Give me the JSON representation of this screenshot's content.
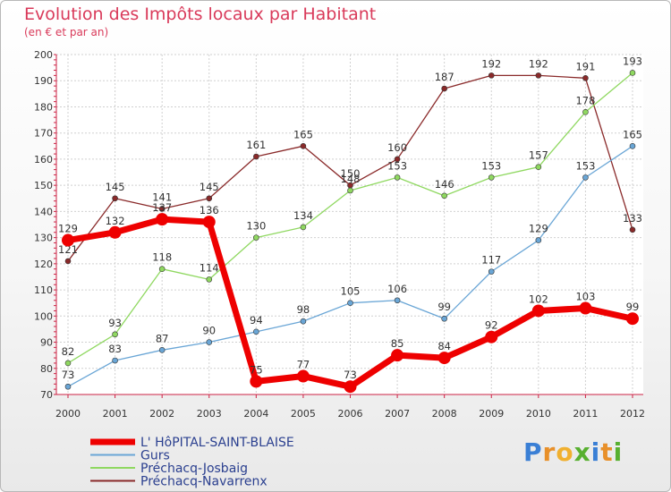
{
  "title": "Evolution des Impôts locaux par Habitant",
  "subtitle": "(en € et par an)",
  "logo": {
    "text": "Proxiti",
    "letters": [
      "P",
      "r",
      "o",
      "x",
      "i",
      "t",
      "i"
    ],
    "colors": [
      "#3a7fd5",
      "#e8902a",
      "#f0b030",
      "#58b030",
      "#3a7fd5",
      "#e8902a",
      "#58b030"
    ]
  },
  "chart_data": {
    "type": "line",
    "title": "Evolution des Impôts locaux par Habitant",
    "subtitle": "(en € et par an)",
    "x": [
      "2000",
      "2001",
      "2002",
      "2003",
      "2004",
      "2005",
      "2006",
      "2007",
      "2008",
      "2009",
      "2010",
      "2011",
      "2012"
    ],
    "ylim": [
      70,
      200
    ],
    "yticks": [
      70,
      80,
      90,
      100,
      110,
      120,
      130,
      140,
      150,
      160,
      170,
      180,
      190,
      200
    ],
    "grid": true,
    "legend_position": "bottom-left",
    "series": [
      {
        "name": "Préchacq-Navarrenx",
        "color": "#8a2a2a",
        "values": [
          121,
          145,
          141,
          145,
          161,
          165,
          150,
          160,
          187,
          192,
          192,
          191,
          133
        ]
      },
      {
        "name": "Préchacq-Josbaig",
        "color": "#8fd860",
        "values": [
          82,
          93,
          118,
          114,
          130,
          134,
          148,
          153,
          146,
          153,
          157,
          178,
          193
        ]
      },
      {
        "name": "Gurs",
        "color": "#6aa6d6",
        "values": [
          73,
          83,
          87,
          90,
          94,
          98,
          105,
          106,
          99,
          117,
          129,
          153,
          165
        ]
      },
      {
        "name": "L' HôPITAL-SAINT-BLAISE",
        "color": "#ee0000",
        "values": [
          129,
          132,
          137,
          136,
          75,
          77,
          73,
          85,
          84,
          92,
          102,
          103,
          99
        ]
      }
    ]
  }
}
